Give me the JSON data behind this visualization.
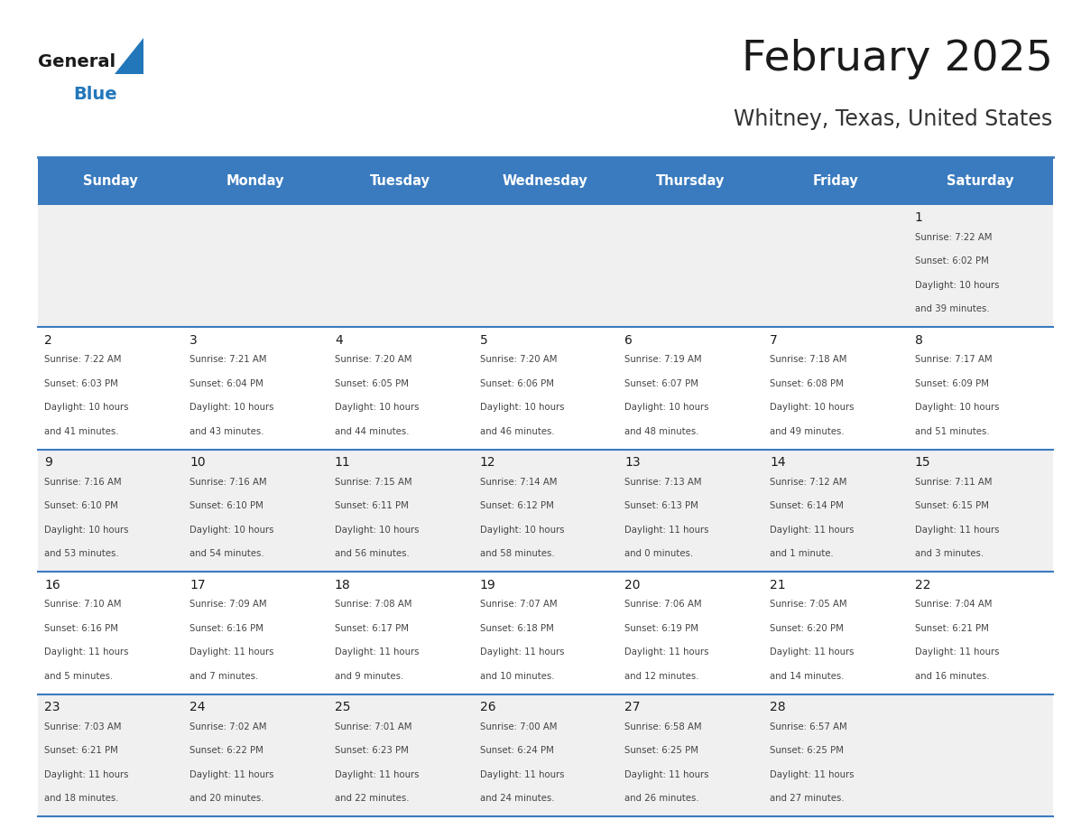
{
  "title": "February 2025",
  "subtitle": "Whitney, Texas, United States",
  "header_bg": "#3a7bbf",
  "header_text_color": "#ffffff",
  "days_of_week": [
    "Sunday",
    "Monday",
    "Tuesday",
    "Wednesday",
    "Thursday",
    "Friday",
    "Saturday"
  ],
  "row_bg_even": "#f0f0f0",
  "row_bg_odd": "#ffffff",
  "cell_text_color": "#444444",
  "day_num_color": "#1a1a1a",
  "grid_line_color": "#3a7bbf",
  "logo_general_color": "#1a1a1a",
  "logo_blue_color": "#2277bb",
  "title_color": "#1a1a1a",
  "subtitle_color": "#333333",
  "calendar": [
    [
      null,
      null,
      null,
      null,
      null,
      null,
      {
        "day": 1,
        "sunrise": "7:22 AM",
        "sunset": "6:02 PM",
        "daylight_l1": "Daylight: 10 hours",
        "daylight_l2": "and 39 minutes."
      }
    ],
    [
      {
        "day": 2,
        "sunrise": "7:22 AM",
        "sunset": "6:03 PM",
        "daylight_l1": "Daylight: 10 hours",
        "daylight_l2": "and 41 minutes."
      },
      {
        "day": 3,
        "sunrise": "7:21 AM",
        "sunset": "6:04 PM",
        "daylight_l1": "Daylight: 10 hours",
        "daylight_l2": "and 43 minutes."
      },
      {
        "day": 4,
        "sunrise": "7:20 AM",
        "sunset": "6:05 PM",
        "daylight_l1": "Daylight: 10 hours",
        "daylight_l2": "and 44 minutes."
      },
      {
        "day": 5,
        "sunrise": "7:20 AM",
        "sunset": "6:06 PM",
        "daylight_l1": "Daylight: 10 hours",
        "daylight_l2": "and 46 minutes."
      },
      {
        "day": 6,
        "sunrise": "7:19 AM",
        "sunset": "6:07 PM",
        "daylight_l1": "Daylight: 10 hours",
        "daylight_l2": "and 48 minutes."
      },
      {
        "day": 7,
        "sunrise": "7:18 AM",
        "sunset": "6:08 PM",
        "daylight_l1": "Daylight: 10 hours",
        "daylight_l2": "and 49 minutes."
      },
      {
        "day": 8,
        "sunrise": "7:17 AM",
        "sunset": "6:09 PM",
        "daylight_l1": "Daylight: 10 hours",
        "daylight_l2": "and 51 minutes."
      }
    ],
    [
      {
        "day": 9,
        "sunrise": "7:16 AM",
        "sunset": "6:10 PM",
        "daylight_l1": "Daylight: 10 hours",
        "daylight_l2": "and 53 minutes."
      },
      {
        "day": 10,
        "sunrise": "7:16 AM",
        "sunset": "6:10 PM",
        "daylight_l1": "Daylight: 10 hours",
        "daylight_l2": "and 54 minutes."
      },
      {
        "day": 11,
        "sunrise": "7:15 AM",
        "sunset": "6:11 PM",
        "daylight_l1": "Daylight: 10 hours",
        "daylight_l2": "and 56 minutes."
      },
      {
        "day": 12,
        "sunrise": "7:14 AM",
        "sunset": "6:12 PM",
        "daylight_l1": "Daylight: 10 hours",
        "daylight_l2": "and 58 minutes."
      },
      {
        "day": 13,
        "sunrise": "7:13 AM",
        "sunset": "6:13 PM",
        "daylight_l1": "Daylight: 11 hours",
        "daylight_l2": "and 0 minutes."
      },
      {
        "day": 14,
        "sunrise": "7:12 AM",
        "sunset": "6:14 PM",
        "daylight_l1": "Daylight: 11 hours",
        "daylight_l2": "and 1 minute."
      },
      {
        "day": 15,
        "sunrise": "7:11 AM",
        "sunset": "6:15 PM",
        "daylight_l1": "Daylight: 11 hours",
        "daylight_l2": "and 3 minutes."
      }
    ],
    [
      {
        "day": 16,
        "sunrise": "7:10 AM",
        "sunset": "6:16 PM",
        "daylight_l1": "Daylight: 11 hours",
        "daylight_l2": "and 5 minutes."
      },
      {
        "day": 17,
        "sunrise": "7:09 AM",
        "sunset": "6:16 PM",
        "daylight_l1": "Daylight: 11 hours",
        "daylight_l2": "and 7 minutes."
      },
      {
        "day": 18,
        "sunrise": "7:08 AM",
        "sunset": "6:17 PM",
        "daylight_l1": "Daylight: 11 hours",
        "daylight_l2": "and 9 minutes."
      },
      {
        "day": 19,
        "sunrise": "7:07 AM",
        "sunset": "6:18 PM",
        "daylight_l1": "Daylight: 11 hours",
        "daylight_l2": "and 10 minutes."
      },
      {
        "day": 20,
        "sunrise": "7:06 AM",
        "sunset": "6:19 PM",
        "daylight_l1": "Daylight: 11 hours",
        "daylight_l2": "and 12 minutes."
      },
      {
        "day": 21,
        "sunrise": "7:05 AM",
        "sunset": "6:20 PM",
        "daylight_l1": "Daylight: 11 hours",
        "daylight_l2": "and 14 minutes."
      },
      {
        "day": 22,
        "sunrise": "7:04 AM",
        "sunset": "6:21 PM",
        "daylight_l1": "Daylight: 11 hours",
        "daylight_l2": "and 16 minutes."
      }
    ],
    [
      {
        "day": 23,
        "sunrise": "7:03 AM",
        "sunset": "6:21 PM",
        "daylight_l1": "Daylight: 11 hours",
        "daylight_l2": "and 18 minutes."
      },
      {
        "day": 24,
        "sunrise": "7:02 AM",
        "sunset": "6:22 PM",
        "daylight_l1": "Daylight: 11 hours",
        "daylight_l2": "and 20 minutes."
      },
      {
        "day": 25,
        "sunrise": "7:01 AM",
        "sunset": "6:23 PM",
        "daylight_l1": "Daylight: 11 hours",
        "daylight_l2": "and 22 minutes."
      },
      {
        "day": 26,
        "sunrise": "7:00 AM",
        "sunset": "6:24 PM",
        "daylight_l1": "Daylight: 11 hours",
        "daylight_l2": "and 24 minutes."
      },
      {
        "day": 27,
        "sunrise": "6:58 AM",
        "sunset": "6:25 PM",
        "daylight_l1": "Daylight: 11 hours",
        "daylight_l2": "and 26 minutes."
      },
      {
        "day": 28,
        "sunrise": "6:57 AM",
        "sunset": "6:25 PM",
        "daylight_l1": "Daylight: 11 hours",
        "daylight_l2": "and 27 minutes."
      },
      null
    ]
  ]
}
